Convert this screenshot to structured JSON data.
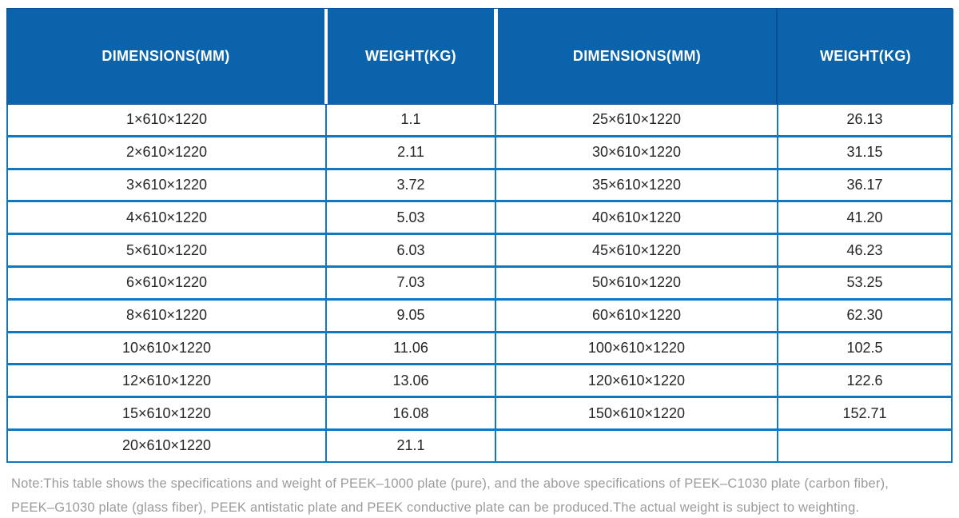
{
  "table": {
    "headers": [
      "DIMENSIONS(MM)",
      "WEIGHT(KG)",
      "DIMENSIONS(MM)",
      "WEIGHT(KG)"
    ],
    "rows": [
      {
        "dim_left": "1×610×1220",
        "wt_left": "1.1",
        "dim_right": "25×610×1220",
        "wt_right": "26.13"
      },
      {
        "dim_left": "2×610×1220",
        "wt_left": "2.11",
        "dim_right": "30×610×1220",
        "wt_right": "31.15"
      },
      {
        "dim_left": "3×610×1220",
        "wt_left": "3.72",
        "dim_right": "35×610×1220",
        "wt_right": "36.17"
      },
      {
        "dim_left": "4×610×1220",
        "wt_left": "5.03",
        "dim_right": "40×610×1220",
        "wt_right": "41.20"
      },
      {
        "dim_left": "5×610×1220",
        "wt_left": "6.03",
        "dim_right": "45×610×1220",
        "wt_right": "46.23"
      },
      {
        "dim_left": "6×610×1220",
        "wt_left": "7.03",
        "dim_right": "50×610×1220",
        "wt_right": "53.25"
      },
      {
        "dim_left": "8×610×1220",
        "wt_left": "9.05",
        "dim_right": "60×610×1220",
        "wt_right": "62.30"
      },
      {
        "dim_left": "10×610×1220",
        "wt_left": "11.06",
        "dim_right": "100×610×1220",
        "wt_right": "102.5"
      },
      {
        "dim_left": "12×610×1220",
        "wt_left": "13.06",
        "dim_right": "120×610×1220",
        "wt_right": "122.6"
      },
      {
        "dim_left": "15×610×1220",
        "wt_left": "16.08",
        "dim_right": "150×610×1220",
        "wt_right": "152.71"
      },
      {
        "dim_left": "20×610×1220",
        "wt_left": "21.1",
        "dim_right": "",
        "wt_right": ""
      }
    ]
  },
  "note_lines": [
    "Note:This table shows the specifications and weight of PEEK–1000 plate (pure), and the above specifications of PEEK–C1030 plate (carbon fiber),",
    "PEEK–G1030 plate (glass fiber), PEEK antistatic plate and PEEK conductive plate can be produced.The actual weight is subject to weighting."
  ],
  "colors": {
    "header_bg": "#0b63ac",
    "grid_line": "#0f78c2",
    "header_divider_dark": "#0a4e94",
    "cell_text": "#262626",
    "note_text": "#9b9b9b"
  }
}
